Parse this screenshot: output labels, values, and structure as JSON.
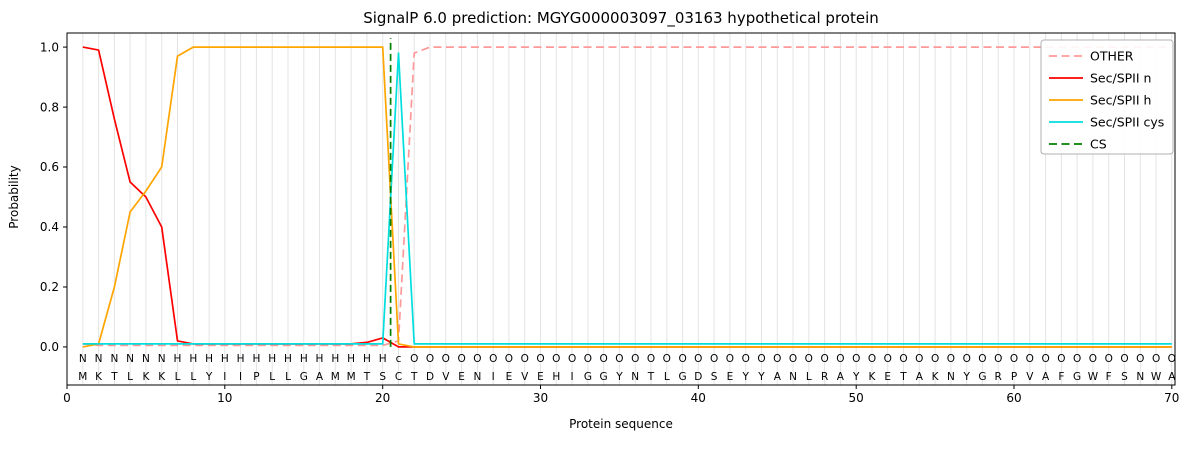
{
  "chart_data": {
    "type": "line",
    "title": "SignalP 6.0 prediction: MGYG000003097_03163 hypothetical protein",
    "xlabel": "Protein sequence",
    "ylabel": "Probability",
    "xticks": [
      0,
      10,
      20,
      30,
      40,
      50,
      60,
      70
    ],
    "yticks": [
      "0.0",
      "0.2",
      "0.4",
      "0.6",
      "0.8",
      "1.0"
    ],
    "xlim": [
      0,
      70.2
    ],
    "ylim": [
      -0.127,
      1.047
    ],
    "grid": "vertical line at every residue position",
    "legend_position": "upper right",
    "sequence": "MKTLKKLLYIIPLLGAMMTSCTDVENIEVEHIGGYNTLGDSEYYANLRAYKETAKNYGRPVAFGWFSNWA",
    "region_labels": "NNNNNNHHHHHHHHHHHHHHcOOOOOOOOOOOOOOOOOOOOOOOOOOOOOOOOOOOOOOOOOOOOOOOOO",
    "region_label_colors": {
      "N": "#ff0000",
      "H": "#ffa500",
      "c": "#00cccc",
      "O": "#a6a6a6"
    },
    "series": [
      {
        "name": "OTHER",
        "color": "#ff9999",
        "dash": true,
        "values": [
          0.01,
          0.005,
          0.005,
          0.005,
          0.005,
          0.005,
          0.005,
          0.005,
          0.005,
          0.005,
          0.005,
          0.005,
          0.005,
          0.005,
          0.005,
          0.005,
          0.005,
          0.005,
          0.005,
          0.005,
          0.02,
          0.98,
          1,
          1,
          1,
          1,
          1,
          1,
          1,
          1,
          1,
          1,
          1,
          1,
          1,
          1,
          1,
          1,
          1,
          1,
          1,
          1,
          1,
          1,
          1,
          1,
          1,
          1,
          1,
          1,
          1,
          1,
          1,
          1,
          1,
          1,
          1,
          1,
          1,
          1,
          1,
          1,
          1,
          1,
          1,
          1,
          1,
          1,
          1,
          1
        ]
      },
      {
        "name": "Sec/SPII n",
        "color": "#ff0000",
        "dash": false,
        "values": [
          1,
          0.99,
          0.76,
          0.55,
          0.5,
          0.4,
          0.02,
          0.01,
          0.01,
          0.01,
          0.01,
          0.01,
          0.01,
          0.01,
          0.01,
          0.01,
          0.01,
          0.01,
          0.015,
          0.03,
          0,
          0,
          0,
          0,
          0,
          0,
          0,
          0,
          0,
          0,
          0,
          0,
          0,
          0,
          0,
          0,
          0,
          0,
          0,
          0,
          0,
          0,
          0,
          0,
          0,
          0,
          0,
          0,
          0,
          0,
          0,
          0,
          0,
          0,
          0,
          0,
          0,
          0,
          0,
          0,
          0,
          0,
          0,
          0,
          0,
          0,
          0,
          0,
          0,
          0
        ]
      },
      {
        "name": "Sec/SPII h",
        "color": "#ffa500",
        "dash": false,
        "values": [
          0,
          0.01,
          0.2,
          0.45,
          0.52,
          0.6,
          0.97,
          1,
          1,
          1,
          1,
          1,
          1,
          1,
          1,
          1,
          1,
          1,
          1,
          1,
          0.01,
          0,
          0,
          0,
          0,
          0,
          0,
          0,
          0,
          0,
          0,
          0,
          0,
          0,
          0,
          0,
          0,
          0,
          0,
          0,
          0,
          0,
          0,
          0,
          0,
          0,
          0,
          0,
          0,
          0,
          0,
          0,
          0,
          0,
          0,
          0,
          0,
          0,
          0,
          0,
          0,
          0,
          0,
          0,
          0,
          0,
          0,
          0,
          0,
          0
        ]
      },
      {
        "name": "Sec/SPII cys",
        "color": "#00dede",
        "dash": false,
        "values": [
          0.01,
          0.01,
          0.01,
          0.01,
          0.01,
          0.01,
          0.01,
          0.01,
          0.01,
          0.01,
          0.01,
          0.01,
          0.01,
          0.01,
          0.01,
          0.01,
          0.01,
          0.01,
          0.01,
          0.01,
          0.98,
          0.01,
          0.01,
          0.01,
          0.01,
          0.01,
          0.01,
          0.01,
          0.01,
          0.01,
          0.01,
          0.01,
          0.01,
          0.01,
          0.01,
          0.01,
          0.01,
          0.01,
          0.01,
          0.01,
          0.01,
          0.01,
          0.01,
          0.01,
          0.01,
          0.01,
          0.01,
          0.01,
          0.01,
          0.01,
          0.01,
          0.01,
          0.01,
          0.01,
          0.01,
          0.01,
          0.01,
          0.01,
          0.01,
          0.01,
          0.01,
          0.01,
          0.01,
          0.01,
          0.01,
          0.01,
          0.01,
          0.01,
          0.01,
          0.01
        ]
      }
    ],
    "cs_marker": {
      "label": "CS",
      "x": 20.5,
      "color": "#008000",
      "dash": true
    }
  }
}
